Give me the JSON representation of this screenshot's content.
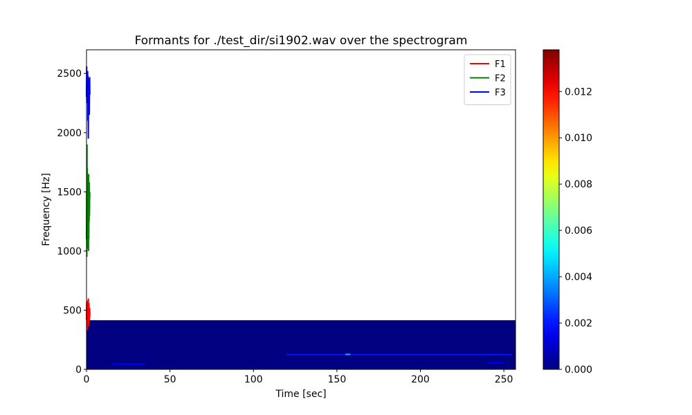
{
  "chart_data": {
    "type": "line",
    "title": "Formants for ./test_dir/si1902.wav over the spectrogram",
    "xlabel": "Time [sec]",
    "ylabel": "Frequency [Hz]",
    "xlim": [
      0,
      257
    ],
    "ylim": [
      0,
      2700
    ],
    "xticks": [
      0,
      50,
      100,
      150,
      200,
      250
    ],
    "yticks": [
      0,
      500,
      1000,
      1500,
      2000,
      2500
    ],
    "grid": false,
    "legend_position": "top-right",
    "spectrogram": {
      "type": "heatmap",
      "x_range": [
        0,
        257
      ],
      "freq_range": [
        0,
        415
      ],
      "background_value": 0.0,
      "features": [
        {
          "x_start": 15,
          "x_end": 35,
          "freq": 45,
          "value": 0.0015
        },
        {
          "x_start": 120,
          "x_end": 255,
          "freq": 125,
          "value": 0.002
        },
        {
          "x_start": 155,
          "x_end": 158,
          "freq": 127,
          "value": 0.004
        },
        {
          "x_start": 240,
          "x_end": 250,
          "freq": 55,
          "value": 0.0015
        }
      ]
    },
    "colorbar": {
      "min": 0.0,
      "max": 0.0138,
      "ticks": [
        "0.000",
        "0.002",
        "0.004",
        "0.006",
        "0.008",
        "0.010",
        "0.012"
      ],
      "colormap": "jet"
    },
    "series": [
      {
        "name": "F1",
        "color": "#ff0000",
        "x": [
          0.0,
          0.1,
          0.2,
          0.3,
          0.4,
          0.5,
          0.6,
          0.7,
          0.8,
          0.9,
          1.0,
          1.1,
          1.2,
          1.3,
          1.4,
          1.5,
          1.6,
          1.7,
          1.8,
          1.9,
          2.0
        ],
        "y": [
          420,
          560,
          380,
          520,
          330,
          580,
          410,
          470,
          360,
          540,
          440,
          600,
          400,
          500,
          370,
          560,
          430,
          480,
          410,
          520,
          450
        ]
      },
      {
        "name": "F2",
        "color": "#008000",
        "x": [
          0.0,
          0.1,
          0.2,
          0.3,
          0.4,
          0.5,
          0.6,
          0.7,
          0.8,
          0.9,
          1.0,
          1.1,
          1.2,
          1.3,
          1.4,
          1.5,
          1.6,
          1.7,
          1.8,
          1.9,
          2.0
        ],
        "y": [
          1100,
          1500,
          950,
          1900,
          1020,
          1700,
          1200,
          1450,
          1050,
          1600,
          1150,
          1550,
          1000,
          1650,
          1100,
          1450,
          1250,
          1580,
          1300,
          1500,
          1450
        ]
      },
      {
        "name": "F3",
        "color": "#0000ff",
        "x": [
          0.0,
          0.1,
          0.2,
          0.3,
          0.4,
          0.5,
          0.6,
          0.7,
          0.8,
          0.9,
          1.0,
          1.1,
          1.2,
          1.3,
          1.4,
          1.5,
          1.6,
          1.7,
          1.8,
          1.9,
          2.0
        ],
        "y": [
          2300,
          2560,
          2250,
          2500,
          2350,
          2450,
          2280,
          2520,
          2100,
          2480,
          2300,
          1950,
          2400,
          2250,
          2460,
          2300,
          2430,
          2150,
          2380,
          2470,
          2320
        ]
      }
    ]
  }
}
